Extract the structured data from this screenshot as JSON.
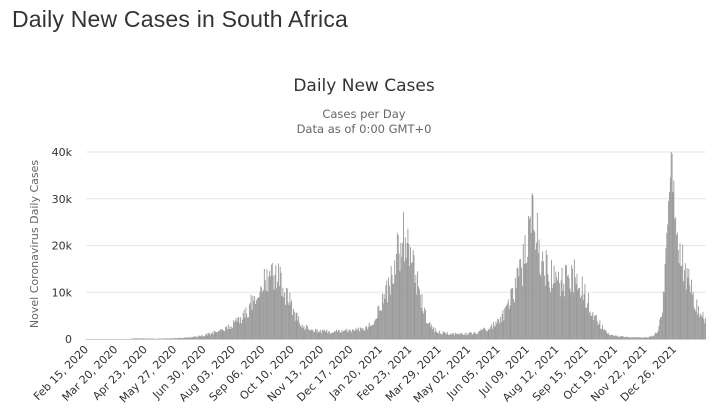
{
  "page": {
    "heading": "Daily New Cases in South Africa"
  },
  "colors": {
    "bar": "#999999",
    "grid": "#e6e6e6",
    "axis": "#cccccc"
  },
  "chart_data": {
    "type": "bar",
    "title": "Daily New Cases",
    "subtitle": "Cases per Day",
    "subtitle2": "Data as of 0:00 GMT+0",
    "ylabel": "Novel Coronavirus Daily Cases",
    "ylim": [
      0,
      40000
    ],
    "yticks": [
      0,
      10000,
      20000,
      30000,
      40000
    ],
    "ytick_labels": [
      "0",
      "10k",
      "20k",
      "30k",
      "40k"
    ],
    "x_tick_labels": [
      "Feb 15, 2020",
      "Mar 20, 2020",
      "Apr 23, 2020",
      "May 27, 2020",
      "Jun 30, 2020",
      "Aug 03, 2020",
      "Sep 06, 2020",
      "Oct 10, 2020",
      "Nov 13, 2020",
      "Dec 17, 2020",
      "Jan 20, 2021",
      "Feb 23, 2021",
      "Mar 29, 2021",
      "May 02, 2021",
      "Jun 05, 2021",
      "Jul 09, 2021",
      "Aug 12, 2021",
      "Sep 15, 2021",
      "Oct 19, 2021",
      "Nov 22, 2021",
      "Dec 26, 2021"
    ],
    "grid": true,
    "legend": "none",
    "series": [
      {
        "x_start": "2020-02-15",
        "x_end": "2022-01-18",
        "values": [
          0,
          0,
          0,
          0,
          0,
          0,
          0,
          0,
          0,
          0,
          0,
          0,
          0,
          0,
          0,
          0,
          0,
          0,
          0,
          0,
          0,
          0,
          0,
          0,
          0,
          10,
          50,
          80,
          120,
          150,
          110,
          120,
          130,
          150,
          70,
          100,
          90,
          110,
          110,
          80,
          60,
          60,
          80,
          90,
          100,
          100,
          110,
          110,
          120,
          140,
          140,
          160,
          170,
          180,
          200,
          220,
          200,
          250,
          300,
          280,
          320,
          360,
          400,
          500,
          450,
          600,
          650,
          700,
          750,
          800,
          950,
          1000,
          1050,
          1200,
          1350,
          1500,
          1400,
          1600,
          1700,
          1900,
          1800,
          2200,
          2500,
          2700,
          2800,
          3000,
          3300,
          3600,
          3800,
          4000,
          4400,
          4800,
          5500,
          6000,
          6300,
          7000,
          7800,
          8200,
          9000,
          10000,
          11000,
          11500,
          12000,
          12800,
          13000,
          12300,
          11600,
          12500,
          13200,
          13500,
          12800,
          12200,
          13800,
          12700,
          11500,
          10200,
          9500,
          9000,
          8200,
          7000,
          6500,
          5600,
          4800,
          4200,
          3800,
          3300,
          2900,
          2600,
          2400,
          2200,
          2000,
          1900,
          1850,
          1800,
          1750,
          1700,
          1650,
          1650,
          1600,
          1600,
          1550,
          1550,
          1550,
          1500,
          1500,
          1550,
          1600,
          1600,
          1650,
          1700,
          1700,
          1750,
          1800,
          1800,
          1850,
          1900,
          1900,
          1950,
          2000,
          2100,
          2200,
          2300,
          2500,
          2700,
          3000,
          3300,
          3700,
          4200,
          4800,
          5500,
          6200,
          7000,
          7800,
          8500,
          9500,
          10500,
          11500,
          12500,
          14000,
          15500,
          17000,
          18500,
          19500,
          20500,
          21500,
          21000,
          20000,
          19000,
          18000,
          17000,
          15500,
          14000,
          12500,
          10800,
          9200,
          7800,
          6500,
          5300,
          4300,
          3500,
          2900,
          2400,
          2000,
          1800,
          1600,
          1500,
          1400,
          1300,
          1250,
          1200,
          1150,
          1100,
          1100,
          1100,
          1100,
          1050,
          1050,
          1050,
          1050,
          1050,
          1100,
          1100,
          1150,
          1200,
          1200,
          1300,
          1300,
          1400,
          1500,
          1600,
          1700,
          1900,
          2000,
          2200,
          2400,
          2600,
          2900,
          3200,
          3500,
          3800,
          4200,
          4600,
          5000,
          5600,
          6200,
          7000,
          7800,
          8700,
          9600,
          10500,
          11500,
          12500,
          13600,
          14800,
          16000,
          17500,
          19000,
          21000,
          23000,
          25000,
          26500,
          24500,
          22500,
          20500,
          18500,
          17000,
          16000,
          15000,
          14500,
          14000,
          13500,
          13500,
          13000,
          12500,
          12500,
          12000,
          12000,
          12000,
          12500,
          13000,
          13500,
          13800,
          14000,
          13800,
          13200,
          12800,
          12300,
          11800,
          11000,
          10200,
          9300,
          8500,
          7800,
          7000,
          6200,
          5500,
          4800,
          4100,
          3500,
          2900,
          2400,
          2000,
          1700,
          1400,
          1200,
          1000,
          900,
          800,
          700,
          650,
          600,
          550,
          500,
          450,
          420,
          400,
          380,
          360,
          350,
          340,
          330,
          320,
          320,
          320,
          330,
          350,
          380,
          420,
          500,
          600,
          800,
          1200,
          1800,
          2800,
          4500,
          7000,
          11000,
          16000,
          22000,
          28000,
          37500,
          32000,
          26000,
          24000,
          22000,
          21000,
          19000,
          17000,
          15000,
          13500,
          12000,
          11000,
          10000,
          9000,
          8000,
          7200,
          6500,
          5800,
          5200,
          4700,
          4200
        ]
      }
    ]
  }
}
